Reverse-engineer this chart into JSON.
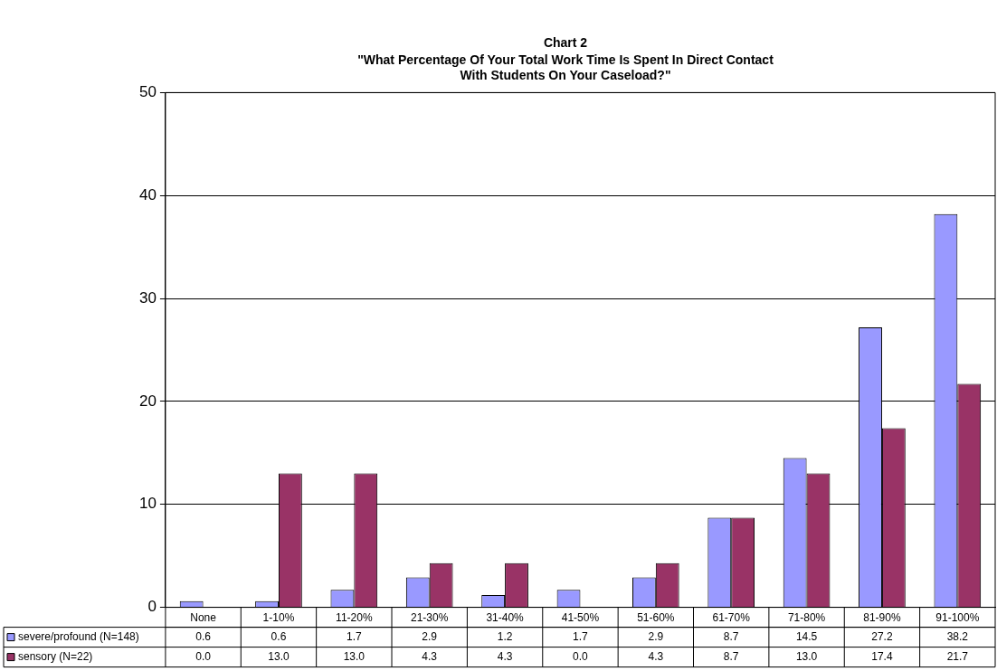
{
  "chart_data": {
    "type": "bar",
    "title": "Chart 2",
    "subtitle": "\"What Percentage Of Your Total Work Time Is Spent In Direct Contact With Students On Your Caseload?\"",
    "categories": [
      "None",
      "1-10%",
      "11-20%",
      "21-30%",
      "31-40%",
      "41-50%",
      "51-60%",
      "61-70%",
      "71-80%",
      "81-90%",
      "91-100%"
    ],
    "series": [
      {
        "name": "severe/profound (N=148)",
        "color": "#9999ff",
        "values": [
          0.6,
          0.6,
          1.7,
          2.9,
          1.2,
          1.7,
          2.9,
          8.7,
          14.5,
          27.2,
          38.2
        ],
        "value_labels": [
          "0.6",
          "0.6",
          "1.7",
          "2.9",
          "1.2",
          "1.7",
          "2.9",
          "8.7",
          "14.5",
          "27.2",
          "38.2"
        ]
      },
      {
        "name": "sensory (N=22)",
        "color": "#993366",
        "values": [
          0.0,
          13.0,
          13.0,
          4.3,
          4.3,
          0.0,
          4.3,
          8.7,
          13.0,
          17.4,
          21.7
        ],
        "value_labels": [
          "0.0",
          "13.0",
          "13.0",
          "4.3",
          "4.3",
          "0.0",
          "4.3",
          "8.7",
          "13.0",
          "17.4",
          "21.7"
        ]
      }
    ],
    "ylim": [
      0,
      50
    ],
    "yticks": [
      0,
      10,
      20,
      30,
      40,
      50
    ],
    "grid": "y",
    "legend": "bottom"
  }
}
